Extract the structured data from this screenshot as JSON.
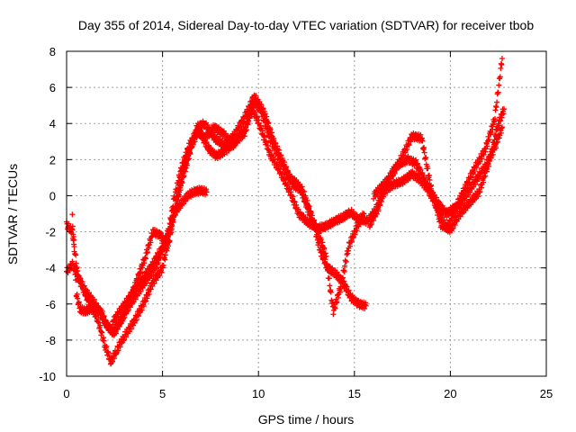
{
  "chart_data": {
    "type": "scatter",
    "title": "Day 355 of 2014, Sidereal Day-to-day VTEC variation (SDTVAR) for receiver tbob",
    "xlabel": "GPS time / hours",
    "ylabel": "SDTVAR / TECUs",
    "xlim": [
      0,
      25
    ],
    "ylim": [
      -10,
      8
    ],
    "xticks": [
      0,
      5,
      10,
      15,
      20,
      25
    ],
    "yticks": [
      -10,
      -8,
      -6,
      -4,
      -2,
      0,
      2,
      4,
      6,
      8
    ],
    "grid": true,
    "marker": "+",
    "color": "#ff0000",
    "series": [
      {
        "x": [
          0,
          0.3,
          0.5,
          0.8,
          1.2,
          1.6,
          2.0,
          2.3,
          2.6,
          3.0,
          3.5,
          4.0,
          4.5,
          5.0,
          5.5,
          6.0,
          6.5,
          6.9,
          7.4,
          7.8,
          8.3,
          8.8,
          9.3,
          9.8,
          10.3,
          10.8,
          11.3,
          11.8,
          12.3,
          12.8,
          13.2,
          13.6,
          14.0,
          14.4,
          14.8,
          15.2,
          15.6
        ],
        "y": [
          -4.2,
          -3.8,
          -4.3,
          -5.0,
          -6.0,
          -6.8,
          -8.3,
          -9.2,
          -8.6,
          -7.8,
          -7.0,
          -6.0,
          -4.8,
          -4.0,
          -1.5,
          1.0,
          2.8,
          3.6,
          2.6,
          2.2,
          2.5,
          3.0,
          3.5,
          5.5,
          4.6,
          3.0,
          1.8,
          0.6,
          0.3,
          -1.2,
          -3.0,
          -4.0,
          -4.3,
          -4.8,
          -5.6,
          -6.0,
          -6.1
        ]
      },
      {
        "x": [
          0,
          0.3,
          0.6,
          1.0,
          1.5,
          2.0,
          2.4,
          2.8,
          3.2,
          3.7,
          4.2,
          4.7,
          5.2,
          5.6,
          6.0,
          6.3,
          6.6,
          7.0,
          7.3
        ],
        "y": [
          -1.6,
          -2.0,
          -4.5,
          -5.3,
          -6.0,
          -7.0,
          -7.6,
          -7.0,
          -6.2,
          -5.4,
          -4.6,
          -3.8,
          -2.5,
          -1.0,
          -0.4,
          0.0,
          0.2,
          0.3,
          0.2
        ]
      },
      {
        "x": [
          0.3,
          0.4,
          0.5,
          0.7,
          1.0,
          1.4,
          1.8,
          2.1,
          2.5,
          2.9,
          3.3,
          3.7,
          4.1,
          4.5,
          4.9,
          5.3,
          5.6,
          6.0,
          6.4,
          6.8,
          7.2,
          7.7,
          8.2,
          8.7,
          9.2,
          9.7,
          10.1,
          10.6,
          11.1,
          11.6,
          12.1,
          12.6,
          13.1,
          13.5,
          13.9,
          14.3,
          14.7,
          15.1,
          15.5
        ],
        "y": [
          -1.2,
          -3.2,
          -5.4,
          -6.3,
          -6.4,
          -6.2,
          -6.4,
          -7.2,
          -7.6,
          -6.8,
          -5.7,
          -4.6,
          -3.4,
          -2.0,
          -2.2,
          -2.8,
          -1.0,
          0.8,
          2.3,
          3.8,
          4.0,
          3.2,
          2.8,
          3.3,
          4.2,
          5.3,
          4.8,
          3.2,
          2.0,
          1.0,
          0.6,
          -0.8,
          -2.0,
          -3.3,
          -6.4,
          -5.0,
          -2.8,
          -1.8,
          -1.0
        ]
      },
      {
        "x": [
          2.4,
          2.9,
          3.3,
          3.7,
          4.1,
          4.5,
          4.9,
          5.3,
          5.6,
          6.0,
          6.4,
          6.8,
          7.2,
          7.7,
          8.2,
          8.7,
          9.2,
          9.7,
          10.1,
          10.6,
          11.1,
          11.6,
          12.1,
          12.6,
          13.1,
          13.5,
          14.0,
          14.4,
          14.8,
          15.2,
          15.7,
          16.1,
          16.5,
          17.0,
          17.5,
          18.0,
          18.4,
          18.8,
          19.3,
          19.8,
          20.3,
          20.8,
          21.3,
          21.8,
          22.3,
          22.7
        ],
        "y": [
          -7.0,
          -6.2,
          -5.6,
          -5.0,
          -4.4,
          -3.8,
          -3.0,
          -2.0,
          -0.2,
          1.6,
          2.8,
          3.6,
          3.2,
          3.8,
          3.4,
          2.8,
          3.6,
          4.8,
          3.8,
          2.3,
          1.4,
          0.3,
          -1.0,
          -1.5,
          -1.8,
          -1.7,
          -1.4,
          -1.2,
          -0.9,
          -1.3,
          -1.4,
          -0.8,
          0.2,
          0.6,
          0.8,
          1.2,
          0.9,
          0.4,
          -0.6,
          -1.8,
          -0.8,
          0.0,
          0.8,
          1.6,
          2.6,
          3.8
        ]
      },
      {
        "x": [
          15.8,
          16.2,
          16.6,
          17.0,
          17.4,
          17.8,
          18.2,
          18.6,
          19.0,
          19.4,
          19.8,
          20.3,
          20.8,
          21.3,
          21.8,
          22.3,
          22.7
        ],
        "y": [
          -1.6,
          -0.8,
          0.4,
          1.4,
          1.8,
          2.0,
          1.8,
          1.0,
          0.2,
          -0.5,
          -1.0,
          -0.6,
          0.5,
          1.6,
          2.5,
          4.2,
          7.6
        ]
      },
      {
        "x": [
          16.0,
          16.5,
          17.0,
          17.5,
          18.0,
          18.5,
          19.0,
          19.5,
          20.0,
          20.5,
          21.0,
          21.5,
          22.0,
          22.5,
          22.8
        ],
        "y": [
          0.0,
          0.6,
          1.2,
          2.2,
          3.3,
          3.2,
          0.4,
          -1.6,
          -1.9,
          -1.0,
          -0.4,
          0.2,
          1.8,
          4.0,
          4.8
        ]
      }
    ]
  }
}
